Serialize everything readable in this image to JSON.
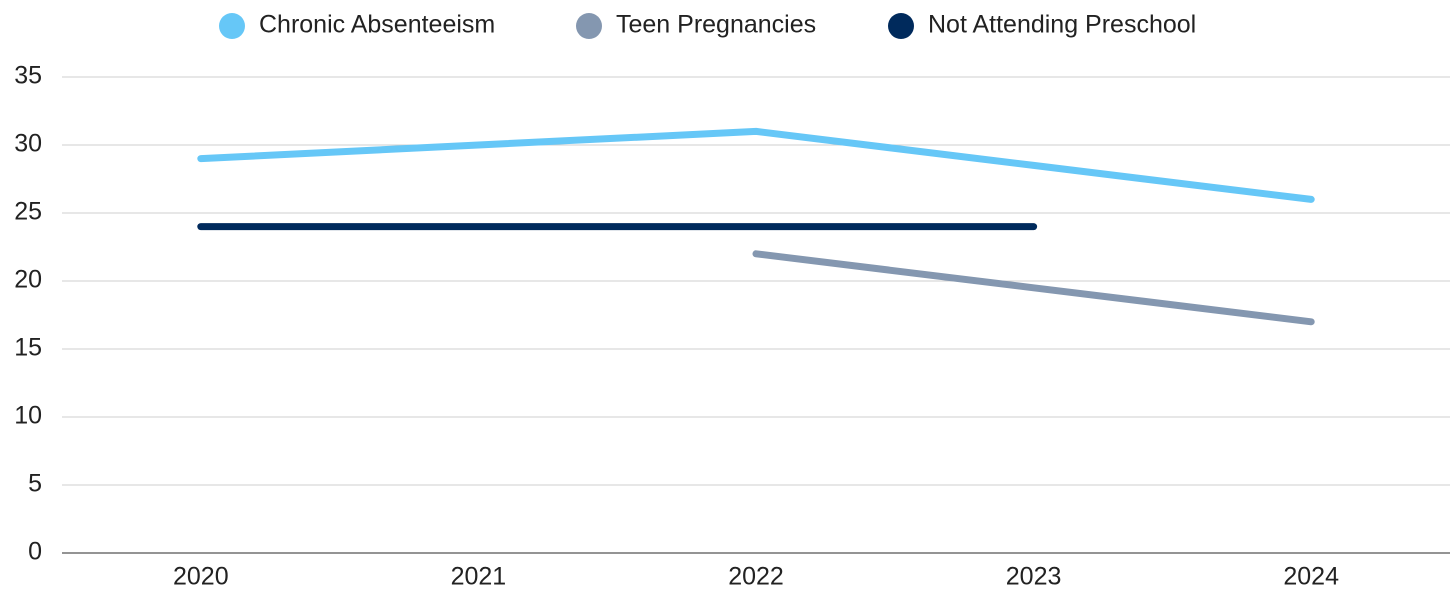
{
  "chart_data": {
    "type": "line",
    "categories": [
      "2020",
      "2021",
      "2022",
      "2023",
      "2024"
    ],
    "series": [
      {
        "name": "Chronic Absenteeism",
        "color": "#66c7f7",
        "values": [
          29,
          30,
          31,
          28.5,
          26
        ]
      },
      {
        "name": "Teen Pregnancies",
        "color": "#8497b0",
        "values": [
          null,
          null,
          22,
          19.5,
          17
        ]
      },
      {
        "name": "Not Attending Preschool",
        "color": "#002a5c",
        "values": [
          24,
          24,
          24,
          24,
          null
        ]
      }
    ],
    "ylim": [
      0,
      35
    ],
    "yticks": [
      0,
      5,
      10,
      15,
      20,
      25,
      30,
      35
    ],
    "grid": true,
    "legend": "top"
  }
}
